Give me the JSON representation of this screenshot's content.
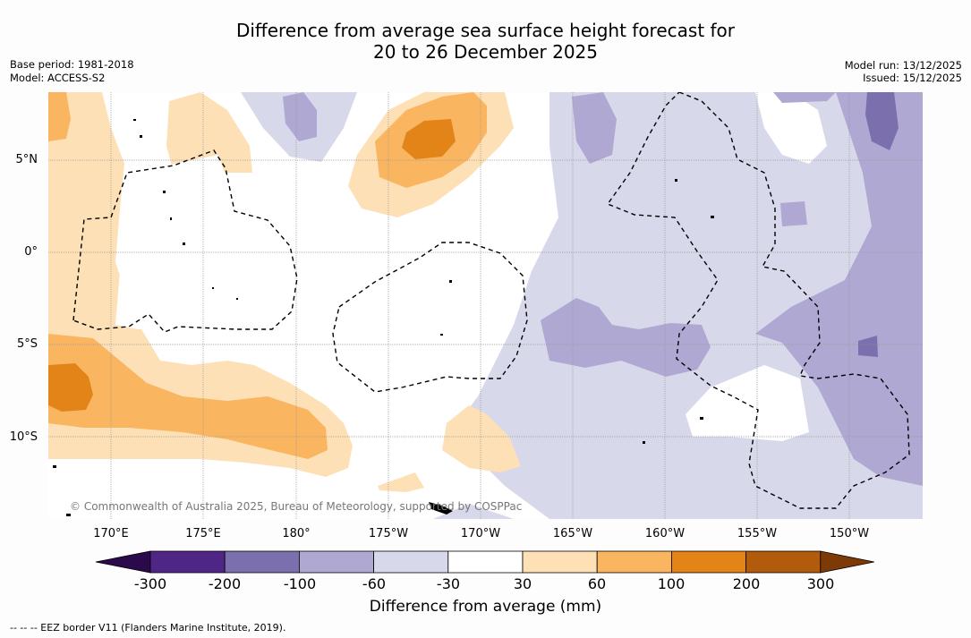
{
  "title": {
    "line1": "Difference from average sea surface height forecast for",
    "line2": "20 to 26 December 2025"
  },
  "meta": {
    "base_period": "Base period: 1981-2018",
    "model": "Model: ACCESS-S2",
    "model_run": "Model run: 13/12/2025",
    "issued": "Issued: 15/12/2025"
  },
  "axes": {
    "lat_labels": [
      "5°N",
      "0°",
      "5°S",
      "10°S"
    ],
    "lon_labels": [
      "170°E",
      "175°E",
      "180°",
      "175°W",
      "170°W",
      "165°W",
      "160°W",
      "155°W",
      "150°W"
    ]
  },
  "colorbar": {
    "title": "Difference from average (mm)",
    "labels": [
      "-300",
      "-200",
      "-100",
      "-60",
      "-30",
      "30",
      "60",
      "100",
      "200",
      "300"
    ],
    "colors": [
      "#4f2685",
      "#7c6fad",
      "#aea8d2",
      "#d8d8eb",
      "#ffffff",
      "#fde0b6",
      "#f9b560",
      "#e38418",
      "#b25b0c"
    ],
    "extend_low": "#2b0a4b",
    "extend_high": "#7e3a06"
  },
  "copyright": "© Commonwealth of Australia 2025, Bureau of Meteorology, supported by COSPPac",
  "legend": "-- -- -- EEZ border V11 (Flanders Marine Institute, 2019).",
  "colors": {
    "neg30": "#d8d8eb",
    "neg60": "#aea8d2",
    "neg100": "#7c6fad",
    "pos30": "#fde0b6",
    "pos60": "#f9b560",
    "pos100": "#e38418",
    "grid": "#999999"
  }
}
